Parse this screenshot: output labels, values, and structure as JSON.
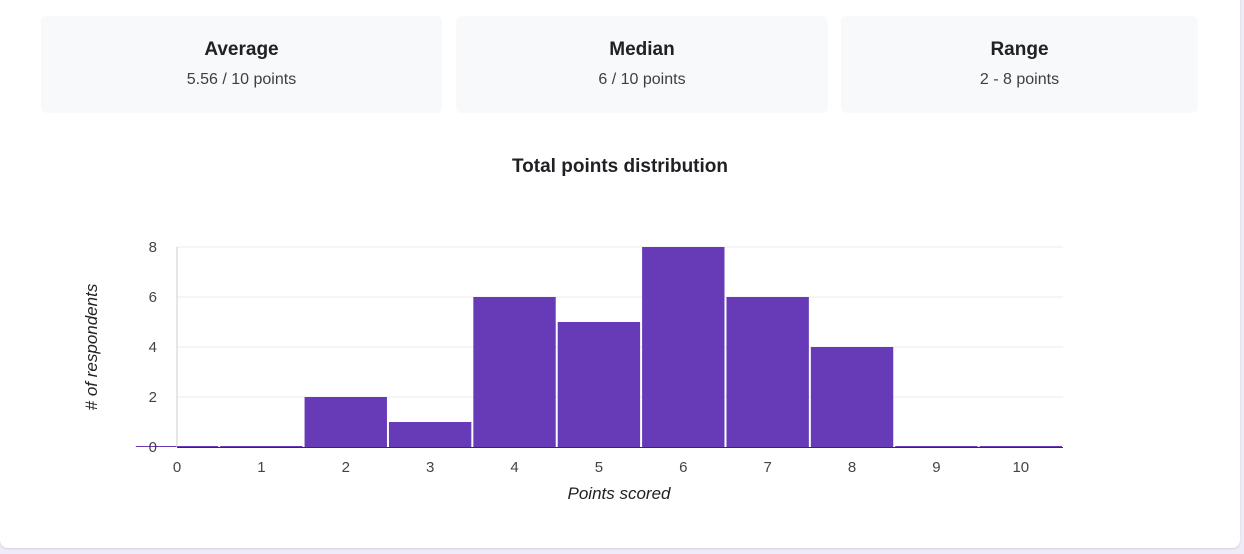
{
  "stats": [
    {
      "label": "Average",
      "value": "5.56 / 10 points"
    },
    {
      "label": "Median",
      "value": "6 / 10 points"
    },
    {
      "label": "Range",
      "value": "2 - 8 points"
    }
  ],
  "chart_data": {
    "type": "bar",
    "title": "Total points distribution",
    "xlabel": "Points scored",
    "ylabel": "# of respondents",
    "categories": [
      "0",
      "1",
      "2",
      "3",
      "4",
      "5",
      "6",
      "7",
      "8",
      "9",
      "10"
    ],
    "values": [
      0,
      0,
      2,
      1,
      6,
      5,
      8,
      6,
      4,
      0,
      0
    ],
    "ylim": [
      0,
      8
    ],
    "yticks": [
      "0",
      "2",
      "4",
      "6",
      "8"
    ],
    "bar_color": "#673ab7",
    "grid": true,
    "legend": "none"
  }
}
